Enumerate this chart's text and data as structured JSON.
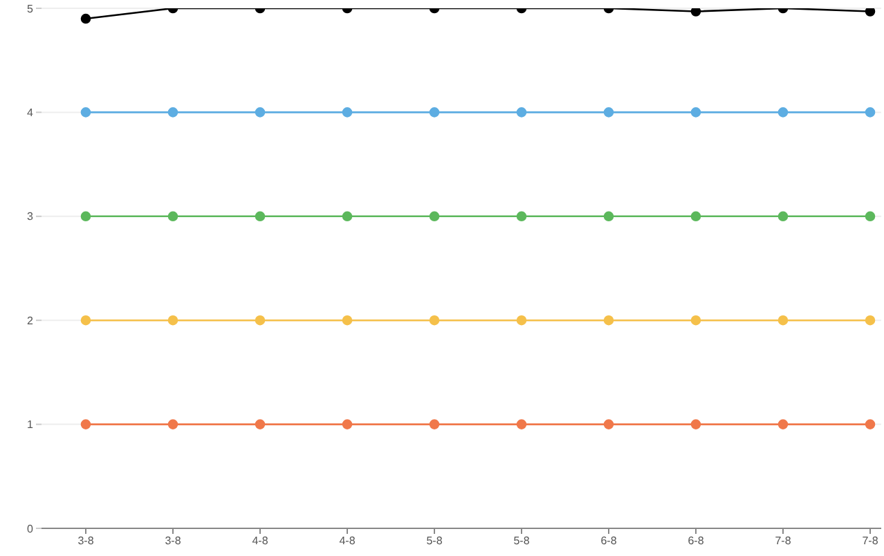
{
  "chart_data": {
    "type": "line",
    "categories": [
      "3-8",
      "3-8",
      "4-8",
      "4-8",
      "5-8",
      "5-8",
      "6-8",
      "6-8",
      "7-8",
      "7-8"
    ],
    "series": [
      {
        "color": "#000000",
        "values": [
          4.9,
          5,
          5,
          5,
          5,
          5,
          5,
          4.97,
          5,
          4.97
        ]
      },
      {
        "color": "#5dade2",
        "values": [
          4,
          4,
          4,
          4,
          4,
          4,
          4,
          4,
          4,
          4
        ]
      },
      {
        "color": "#5cb85c",
        "values": [
          3,
          3,
          3,
          3,
          3,
          3,
          3,
          3,
          3,
          3
        ]
      },
      {
        "color": "#f5c04a",
        "values": [
          2,
          2,
          2,
          2,
          2,
          2,
          2,
          2,
          2,
          2
        ]
      },
      {
        "color": "#f0784a",
        "values": [
          1,
          1,
          1,
          1,
          1,
          1,
          1,
          1,
          1,
          1
        ]
      }
    ],
    "ylim": [
      0,
      5
    ],
    "yticks": [
      0,
      1,
      2,
      3,
      4,
      5
    ],
    "grid": "y",
    "marker": "circle",
    "line_style": "solid"
  }
}
